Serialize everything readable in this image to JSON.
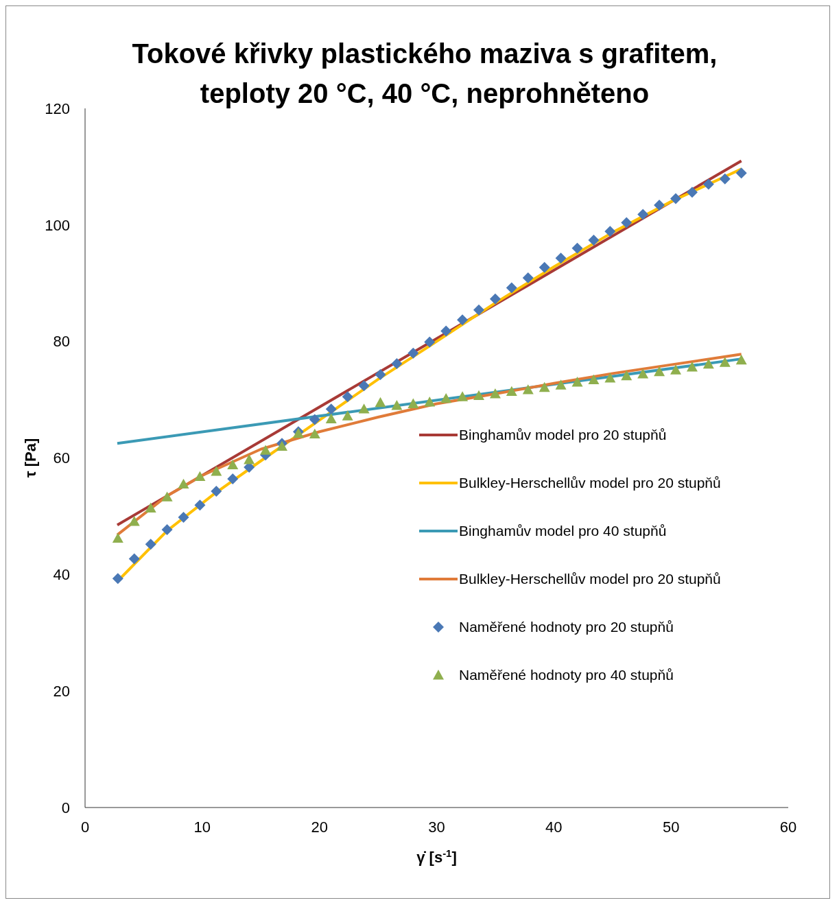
{
  "chart_data": {
    "type": "line",
    "title": "Tokové křivky plastického maziva s grafitem, teploty 20 °C, 40 °C, neprohněteno",
    "xlabel": "γ̇ [s$^{-1}$]",
    "ylabel": "τ [Pa]",
    "xlim": [
      0,
      60
    ],
    "xticks": [
      0,
      10,
      20,
      30,
      40,
      50,
      60
    ],
    "ylim": [
      0,
      120
    ],
    "yticks": [
      0,
      20,
      40,
      60,
      80,
      100,
      120
    ],
    "grid": false,
    "legend": "bottom right",
    "series": [
      {
        "name": "Binghamův model pro 20 stupňů",
        "color": "#a83a36",
        "x": [
          2.75,
          56
        ],
        "values": [
          48.5,
          111
        ]
      },
      {
        "name": "Bulkley-Herschellův model pro 20 stupňů",
        "color": "#ffc000",
        "x": [
          2.75,
          7,
          11,
          15,
          20,
          25,
          30,
          35,
          40,
          45,
          50,
          56
        ],
        "values": [
          38.8,
          47.5,
          53.8,
          59.5,
          66.5,
          73.5,
          80,
          86.6,
          92.8,
          98.7,
          104,
          109.6
        ]
      },
      {
        "name": "Binghamův model pro 40 stupňů",
        "color": "#3b9ab5",
        "x": [
          2.75,
          56
        ],
        "values": [
          62.5,
          77
        ]
      },
      {
        "name": "Bulkley-Herschellův model pro 20 stupňů",
        "color": "#e07b39",
        "x": [
          2.75,
          7,
          10,
          15,
          20,
          25,
          30,
          35,
          40,
          45,
          50,
          56
        ],
        "values": [
          46.8,
          53.5,
          57,
          61.5,
          64.5,
          67,
          69.3,
          71,
          72.8,
          74.5,
          76,
          77.8
        ]
      },
      {
        "name": "Naměřené hodnoty pro 20 stupňů",
        "type": "scatter",
        "marker": "diamond",
        "color": "#4a78b5",
        "x": [
          2.8,
          4.2,
          5.6,
          7.0,
          8.4,
          9.8,
          11.2,
          12.6,
          14.0,
          15.4,
          16.8,
          18.2,
          19.6,
          21.0,
          22.4,
          23.8,
          25.2,
          26.6,
          28.0,
          29.4,
          30.8,
          32.2,
          33.6,
          35.0,
          36.4,
          37.8,
          39.2,
          40.6,
          42.0,
          43.4,
          44.8,
          46.2,
          47.6,
          49.0,
          50.4,
          51.8,
          53.2,
          54.6,
          56.0
        ],
        "values": [
          39.3,
          42.7,
          45.2,
          47.7,
          49.8,
          51.9,
          54.3,
          56.4,
          58.4,
          60.5,
          62.5,
          64.5,
          66.6,
          68.4,
          70.5,
          72.4,
          74.3,
          76.2,
          78.0,
          79.9,
          81.8,
          83.7,
          85.4,
          87.3,
          89.2,
          90.9,
          92.7,
          94.3,
          96.0,
          97.4,
          98.9,
          100.4,
          101.8,
          103.4,
          104.5,
          105.6,
          107.0,
          107.9,
          108.9
        ]
      },
      {
        "name": "Naměřené hodnoty pro 40 stupňů",
        "type": "scatter",
        "marker": "triangle",
        "color": "#8faf4e",
        "x": [
          2.8,
          4.2,
          5.6,
          7.0,
          8.4,
          9.8,
          11.2,
          12.6,
          14.0,
          15.4,
          16.8,
          18.2,
          19.6,
          21.0,
          22.4,
          23.8,
          25.2,
          26.6,
          28.0,
          29.4,
          30.8,
          32.2,
          33.6,
          35.0,
          36.4,
          37.8,
          39.2,
          40.6,
          42.0,
          43.4,
          44.8,
          46.2,
          47.6,
          49.0,
          50.4,
          51.8,
          53.2,
          54.6,
          56.0
        ],
        "values": [
          46.2,
          49.1,
          51.4,
          53.3,
          55.5,
          56.8,
          57.7,
          58.8,
          59.7,
          61.3,
          62.0,
          64.2,
          64.1,
          66.7,
          67.2,
          68.4,
          69.5,
          69.0,
          69.3,
          69.6,
          70.2,
          70.5,
          70.7,
          71.0,
          71.4,
          71.7,
          72.1,
          72.5,
          73.0,
          73.4,
          73.7,
          74.1,
          74.4,
          74.8,
          75.1,
          75.6,
          76.1,
          76.4,
          76.8
        ]
      }
    ]
  }
}
